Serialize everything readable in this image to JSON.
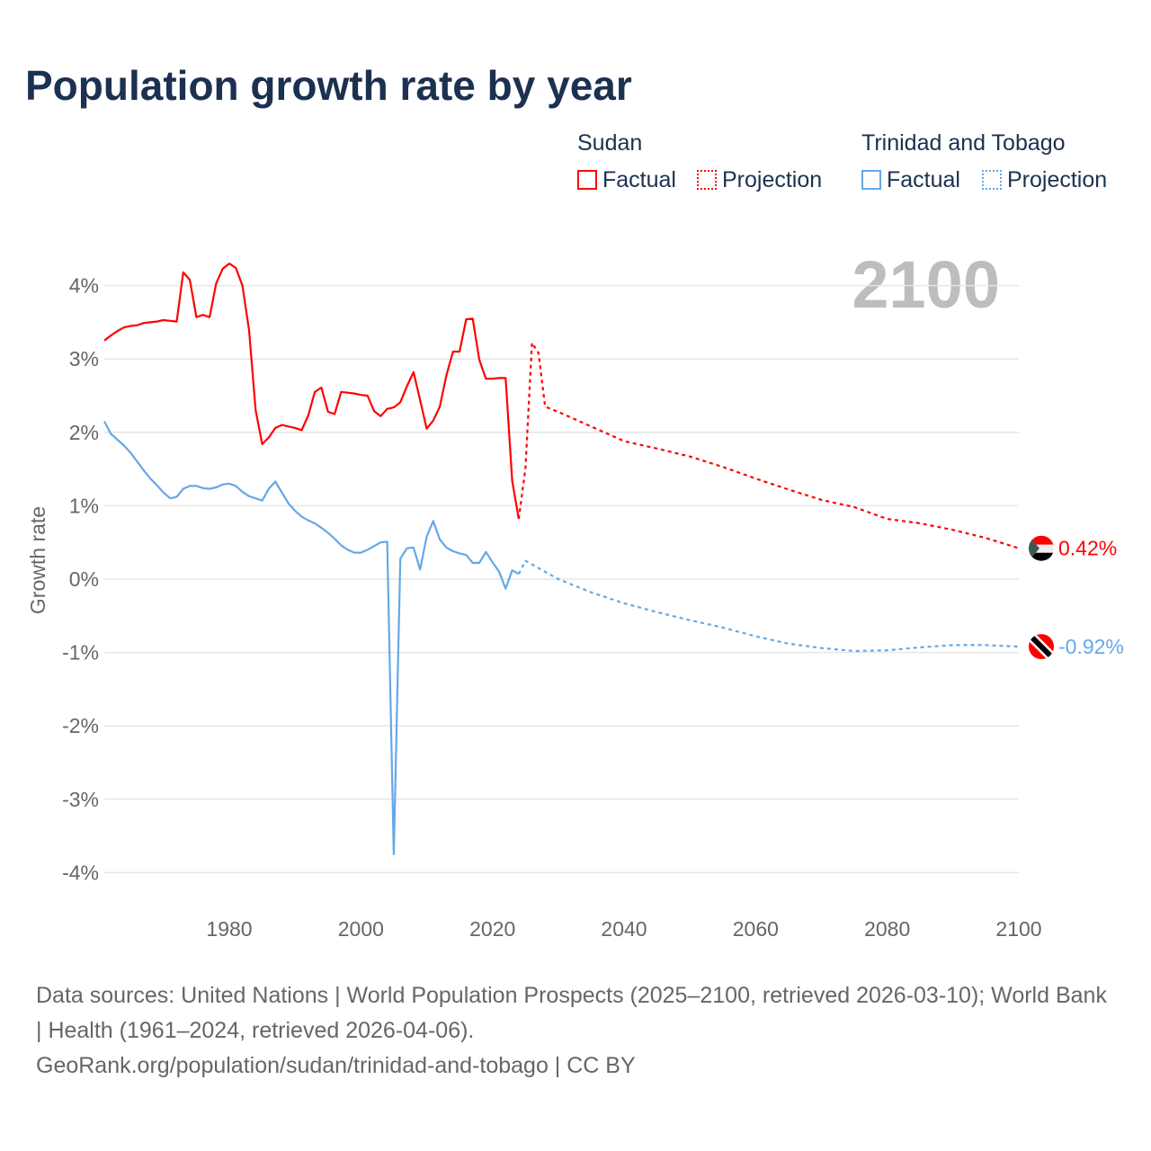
{
  "title": "Population growth rate by year",
  "legend": {
    "groups": [
      {
        "name": "Sudan",
        "factual": "Factual",
        "projection": "Projection",
        "color": "#ff0000"
      },
      {
        "name": "Trinidad and Tobago",
        "factual": "Factual",
        "projection": "Projection",
        "color": "#64a8e8"
      }
    ]
  },
  "year_label": "2100",
  "end_labels": {
    "sudan": "0.42%",
    "tt": "-0.92%"
  },
  "footer": {
    "line1": "Data sources: United Nations | World Population Prospects (2025–2100, retrieved 2026-03-10); World Bank | Health (1961–2024, retrieved 2026-04-06).",
    "line2": "GeoRank.org/population/sudan/trinidad-and-tobago | CC BY"
  },
  "chart_data": {
    "type": "line",
    "title": "Population growth rate by year",
    "xlabel": "",
    "ylabel": "Growth rate",
    "xlim": [
      1961,
      2100
    ],
    "ylim": [
      -4.3,
      4.6
    ],
    "xticks": [
      1980,
      2000,
      2020,
      2040,
      2060,
      2080,
      2100
    ],
    "xtick_labels": [
      "1980",
      "2000",
      "2020",
      "2040",
      "2060",
      "2080",
      "2100"
    ],
    "yticks": [
      4,
      3,
      2,
      1,
      0,
      -1,
      -2,
      -3,
      -4
    ],
    "ytick_labels": [
      "4%",
      "3%",
      "2%",
      "1%",
      "0%",
      "-1%",
      "-2%",
      "-3%",
      "-4%"
    ],
    "grid": true,
    "legend_position": "top-right",
    "series": [
      {
        "name": "Sudan Factual",
        "color": "#ff0000",
        "dashed": false,
        "x_start": 1961,
        "values": [
          3.25,
          3.32,
          3.38,
          3.43,
          3.45,
          3.46,
          3.49,
          3.5,
          3.51,
          3.53,
          3.52,
          3.51,
          4.18,
          4.08,
          3.57,
          3.6,
          3.57,
          4.03,
          4.23,
          4.3,
          4.24,
          4.0,
          3.39,
          2.3,
          1.84,
          1.93,
          2.06,
          2.1,
          2.08,
          2.06,
          2.03,
          2.23,
          2.55,
          2.61,
          2.28,
          2.25,
          2.55,
          2.54,
          2.53,
          2.51,
          2.5,
          2.29,
          2.22,
          2.32,
          2.34,
          2.41,
          2.63,
          2.82,
          2.44,
          2.05,
          2.16,
          2.35,
          2.78,
          3.1,
          3.1,
          3.54,
          3.55,
          2.99,
          2.73,
          2.73,
          2.74,
          2.74,
          1.34,
          0.82
        ]
      },
      {
        "name": "Sudan Projection",
        "color": "#ff0000",
        "dashed": true,
        "x": [
          2024,
          2025,
          2026,
          2027,
          2028,
          2030,
          2035,
          2040,
          2045,
          2050,
          2055,
          2060,
          2065,
          2070,
          2075,
          2080,
          2085,
          2090,
          2095,
          2100
        ],
        "values": [
          0.82,
          1.5,
          3.22,
          3.08,
          2.35,
          2.28,
          2.08,
          1.88,
          1.78,
          1.67,
          1.53,
          1.37,
          1.22,
          1.08,
          0.98,
          0.82,
          0.76,
          0.67,
          0.56,
          0.42
        ]
      },
      {
        "name": "Trinidad and Tobago Factual",
        "color": "#64a8e8",
        "dashed": false,
        "x_start": 1961,
        "values": [
          2.15,
          1.98,
          1.9,
          1.82,
          1.72,
          1.6,
          1.48,
          1.37,
          1.28,
          1.18,
          1.1,
          1.12,
          1.23,
          1.27,
          1.27,
          1.24,
          1.23,
          1.25,
          1.29,
          1.3,
          1.27,
          1.19,
          1.13,
          1.1,
          1.07,
          1.23,
          1.33,
          1.18,
          1.03,
          0.93,
          0.85,
          0.8,
          0.76,
          0.7,
          0.63,
          0.55,
          0.46,
          0.4,
          0.36,
          0.36,
          0.4,
          0.45,
          0.5,
          0.51,
          -3.75,
          0.28,
          0.42,
          0.43,
          0.13,
          0.58,
          0.79,
          0.54,
          0.43,
          0.38,
          0.35,
          0.33,
          0.22,
          0.22,
          0.37,
          0.23,
          0.1,
          -0.13,
          0.12,
          0.07
        ]
      },
      {
        "name": "Trinidad and Tobago Projection",
        "color": "#64a8e8",
        "dashed": true,
        "x": [
          2024,
          2025,
          2026,
          2030,
          2035,
          2040,
          2045,
          2050,
          2055,
          2060,
          2065,
          2070,
          2075,
          2080,
          2085,
          2090,
          2095,
          2100
        ],
        "values": [
          0.07,
          0.25,
          0.2,
          0.0,
          -0.18,
          -0.33,
          -0.45,
          -0.56,
          -0.66,
          -0.78,
          -0.88,
          -0.94,
          -0.98,
          -0.97,
          -0.93,
          -0.9,
          -0.9,
          -0.92
        ]
      }
    ]
  }
}
